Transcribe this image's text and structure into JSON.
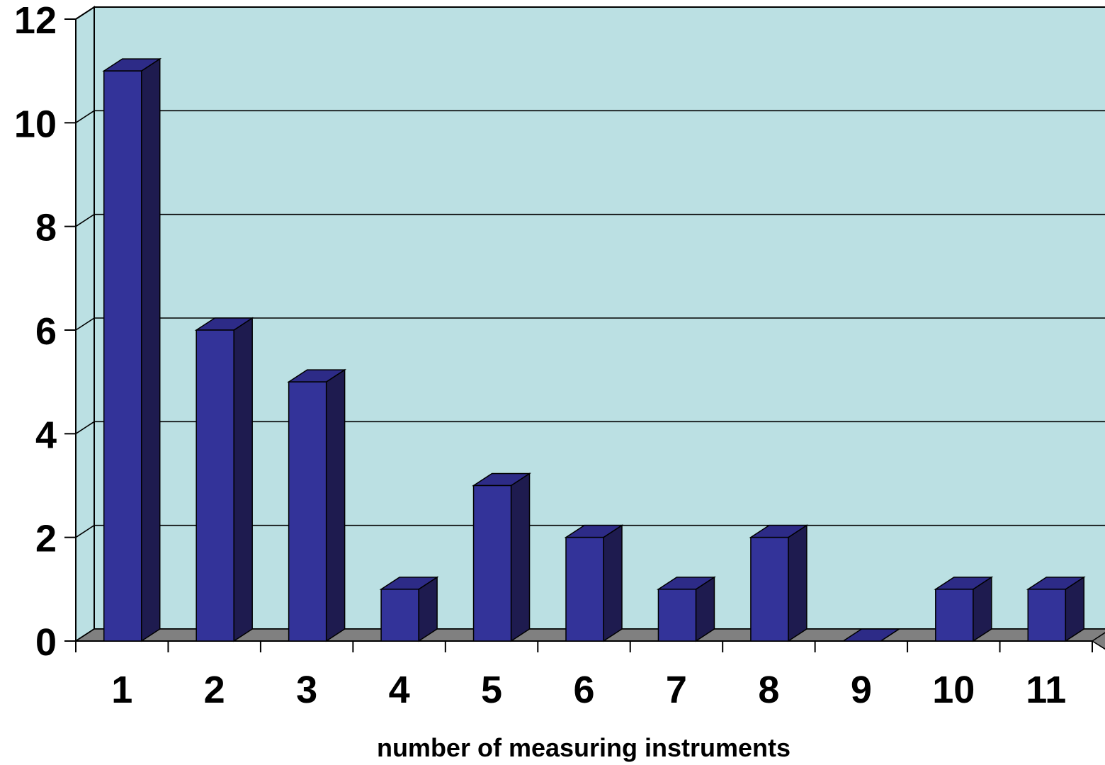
{
  "chart_data": {
    "type": "bar",
    "style": "3d-column",
    "title": "",
    "xlabel": "number of measuring instruments",
    "ylabel": "",
    "categories": [
      "1",
      "2",
      "3",
      "4",
      "5",
      "6",
      "7",
      "8",
      "9",
      "10",
      "11"
    ],
    "values": [
      11,
      6,
      5,
      1,
      3,
      2,
      1,
      2,
      0,
      1,
      1
    ],
    "ylim": [
      0,
      12
    ],
    "yticks": [
      "0",
      "2",
      "4",
      "6",
      "8",
      "10",
      "12"
    ],
    "grid": true,
    "legend": "none",
    "colors": {
      "plot_background": "#bbe0e3",
      "bar_front": "#333399",
      "bar_side": "#1e1b4f",
      "bar_top": "#2d2b87",
      "floor": "#808080",
      "gridline": "#000000"
    }
  }
}
